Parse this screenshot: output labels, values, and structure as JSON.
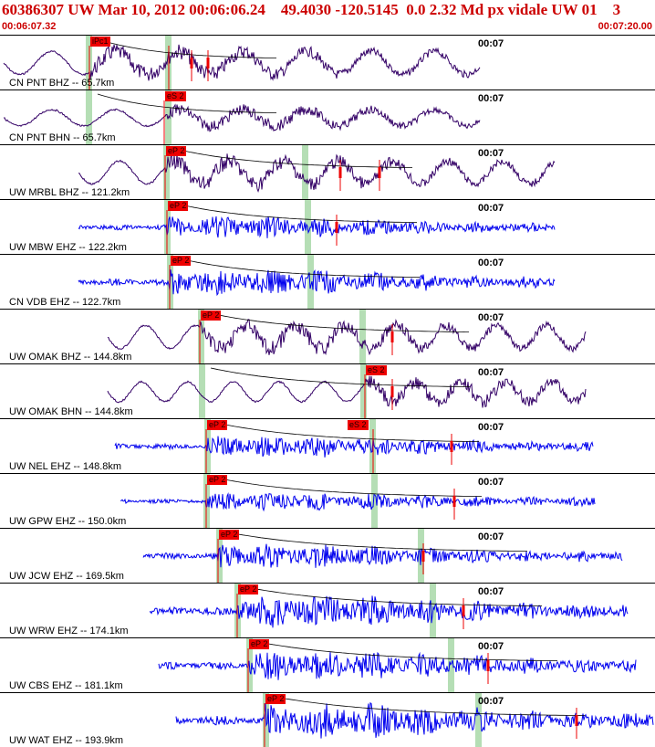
{
  "header": {
    "title": "60386307 UW Mar 10, 2012 00:06:06.24    49.4030 -120.5145  0.0 2.32 Md px vidale UW 01    3",
    "time_start": "00:06:07.32",
    "time_end": "00:07:20.00"
  },
  "colors": {
    "header_text": "#cc0000",
    "broadband_trace": "#330066",
    "short_period_trace": "#0000ee",
    "pick_marker": "#ee0000",
    "arrival_band": "#a8d8a8",
    "curve": "#000000"
  },
  "traces": [
    {
      "label": "CN PNT BHZ -- 65.7km",
      "time_mark": "00:07",
      "pick": "iPc1",
      "kind": "broadband"
    },
    {
      "label": "CN PNT BHN -- 65.7km",
      "time_mark": "00:07",
      "pick": "eS 2",
      "kind": "broadband"
    },
    {
      "label": "UW MRBL BHZ -- 121.2km",
      "time_mark": "00:07",
      "pick": "eP 2",
      "kind": "broadband"
    },
    {
      "label": "UW MBW EHZ -- 122.2km",
      "time_mark": "00:07",
      "pick": "eP 2",
      "kind": "short"
    },
    {
      "label": "CN VDB EHZ -- 122.7km",
      "time_mark": "00:07",
      "pick": "eP 2",
      "kind": "short"
    },
    {
      "label": "UW OMAK BHZ -- 144.8km",
      "time_mark": "00:07",
      "pick": "eP 2",
      "kind": "broadband"
    },
    {
      "label": "UW OMAK BHN -- 144.8km",
      "time_mark": "00:07",
      "pick": "eS 2",
      "kind": "broadband"
    },
    {
      "label": "UW NEL EHZ -- 148.8km",
      "time_mark": "00:07",
      "pick": "eP 2",
      "pick2": "eS 2",
      "kind": "short"
    },
    {
      "label": "UW GPW EHZ -- 150.0km",
      "time_mark": "00:07",
      "pick": "eP 2",
      "kind": "short"
    },
    {
      "label": "UW JCW EHZ -- 169.5km",
      "time_mark": "00:07",
      "pick": "eP 2",
      "kind": "short"
    },
    {
      "label": "UW WRW EHZ -- 174.1km",
      "time_mark": "00:07",
      "pick": "eP 2",
      "kind": "short"
    },
    {
      "label": "UW CBS EHZ -- 181.1km",
      "time_mark": "00:07",
      "pick": "eP 2",
      "kind": "short"
    },
    {
      "label": "UW WAT EHZ -- 193.9km",
      "time_mark": "00:07",
      "pick": "eP 2",
      "kind": "short"
    }
  ]
}
